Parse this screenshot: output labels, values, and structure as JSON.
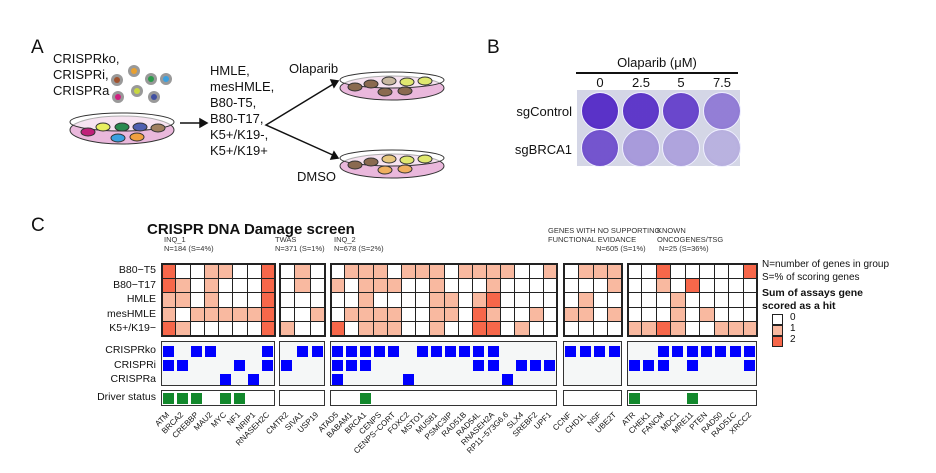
{
  "panelA": {
    "letter": "A",
    "libraries": [
      "CRISPRko,",
      "CRISPRi,",
      "CRISPRa"
    ],
    "cell_lines": [
      "HMLE,",
      "mesHMLE,",
      "B80-T5,",
      "B80-T17,",
      "K5+/K19-,",
      "K5+/K19+"
    ],
    "treatment_top": "Olaparib",
    "treatment_bottom": "DMSO"
  },
  "panelB": {
    "letter": "B",
    "axis_title": "Olaparib (μM)",
    "doses": [
      "0",
      "2.5",
      "5",
      "7.5"
    ],
    "rows": [
      "sgControl",
      "sgBRCA1"
    ],
    "stain_intensity": [
      [
        1.0,
        0.95,
        0.85,
        0.45
      ],
      [
        0.75,
        0.25,
        0.18,
        0.08
      ]
    ]
  },
  "panelC": {
    "letter": "C",
    "title": "CRISPR DNA Damage screen",
    "row_labels": [
      "B80−T5",
      "B80−T17",
      "HMLE",
      "mesHMLE",
      "K5+/K19−"
    ],
    "assay_labels": [
      "CRISPRko",
      "CRISPRi",
      "CRISPRa"
    ],
    "driver_label": "Driver status",
    "groups": [
      {
        "header": [
          "INQ_1",
          "N=184 (S=4%)"
        ],
        "genes": [
          "ATM",
          "BRCA2",
          "CREBBP",
          "MAU2",
          "MYC",
          "NF1",
          "NRIP1",
          "RNASEH2C"
        ],
        "matrix": [
          [
            2,
            0,
            0,
            1,
            1,
            0,
            0,
            2
          ],
          [
            2,
            1,
            0,
            1,
            0,
            0,
            0,
            2
          ],
          [
            1,
            1,
            0,
            1,
            0,
            0,
            0,
            2
          ],
          [
            1,
            0,
            1,
            1,
            1,
            1,
            1,
            2
          ],
          [
            2,
            1,
            0,
            0,
            0,
            0,
            0,
            2
          ]
        ],
        "ko": [
          0,
          2,
          3,
          7
        ],
        "i": [
          0,
          1,
          5,
          7
        ],
        "a": [
          4,
          6
        ],
        "driver": [
          0,
          1,
          2,
          4,
          5
        ]
      },
      {
        "header": [
          "TWAS",
          "N=371 (S=1%)"
        ],
        "genes": [
          "CMTR2",
          "SIVA1",
          "USP19"
        ],
        "matrix": [
          [
            0,
            1,
            0
          ],
          [
            0,
            1,
            0
          ],
          [
            0,
            0,
            0
          ],
          [
            0,
            0,
            1
          ],
          [
            1,
            0,
            0
          ]
        ],
        "ko": [
          1,
          2
        ],
        "i": [
          0
        ],
        "a": [],
        "driver": []
      },
      {
        "header": [
          "INQ_2",
          "N=678 (S=2%)"
        ],
        "genes": [
          "ATAD5",
          "BABAM1",
          "BRCA1",
          "CENPS",
          "CENPS−CORT",
          "FOXC2",
          "MSTO1",
          "MUS81",
          "PSMC3IP",
          "RAD51B",
          "RAD54L",
          "RNASEH2A",
          "RP11−573G6.6",
          "SLX4",
          "SREBF2",
          "UPF1"
        ],
        "matrix": [
          [
            0,
            1,
            1,
            1,
            0,
            1,
            1,
            1,
            0,
            1,
            1,
            1,
            1,
            0,
            0,
            1
          ],
          [
            1,
            0,
            1,
            1,
            1,
            0,
            0,
            1,
            0,
            0,
            0,
            1,
            0,
            0,
            0,
            0
          ],
          [
            0,
            0,
            1,
            0,
            0,
            0,
            0,
            1,
            1,
            0,
            1,
            2,
            0,
            0,
            0,
            0
          ],
          [
            0,
            1,
            1,
            1,
            1,
            0,
            0,
            1,
            1,
            0,
            2,
            1,
            0,
            0,
            1,
            0
          ],
          [
            2,
            0,
            1,
            1,
            1,
            0,
            0,
            1,
            0,
            0,
            2,
            2,
            0,
            1,
            0,
            0
          ]
        ],
        "ko": [
          0,
          1,
          2,
          3,
          4,
          6,
          7,
          8,
          9,
          10,
          11
        ],
        "i": [
          0,
          1,
          2,
          10,
          11,
          13,
          14,
          15
        ],
        "a": [
          0,
          5,
          12
        ],
        "driver": [
          2
        ]
      },
      {
        "header": [
          "GENES WITH NO SUPPORTING",
          "FUNCTIONAL EVIDANCE",
          "N=605 (S=1%)"
        ],
        "genes": [
          "CCNF",
          "CHD1L",
          "NSF",
          "UBE2T"
        ],
        "matrix": [
          [
            0,
            1,
            1,
            1
          ],
          [
            0,
            0,
            0,
            1
          ],
          [
            0,
            1,
            0,
            0
          ],
          [
            1,
            1,
            0,
            1
          ],
          [
            0,
            0,
            0,
            0
          ]
        ],
        "ko": [
          0,
          1,
          2,
          3
        ],
        "i": [],
        "a": [],
        "driver": []
      },
      {
        "header": [
          "KNOWN",
          "ONCOGENES/TSG",
          "N=25 (S=36%)"
        ],
        "genes": [
          "ATR",
          "CHEK1",
          "FANCM",
          "MDC1",
          "MRE11",
          "PTEN",
          "RAD50",
          "RAD51C",
          "XRCC2"
        ],
        "matrix": [
          [
            0,
            0,
            2,
            0,
            0,
            0,
            0,
            0,
            2
          ],
          [
            0,
            0,
            1,
            0,
            2,
            0,
            0,
            0,
            0
          ],
          [
            0,
            0,
            0,
            1,
            0,
            0,
            0,
            0,
            0
          ],
          [
            0,
            0,
            0,
            1,
            0,
            1,
            0,
            0,
            0
          ],
          [
            1,
            1,
            2,
            1,
            0,
            0,
            1,
            1,
            1
          ]
        ],
        "ko": [
          2,
          3,
          4,
          5,
          6,
          7,
          8
        ],
        "i": [
          0,
          1,
          2,
          4,
          8
        ],
        "a": [],
        "driver": [
          0,
          4
        ]
      }
    ],
    "legend": {
      "note1": "N=number of genes in group",
      "note2": "S=% of scoring genes",
      "title1": "Sum of assays gene",
      "title2": "scored as a hit",
      "levels": [
        "0",
        "1",
        "2"
      ]
    },
    "colors": {
      "level0": "#ffffff",
      "level1": "#f9b9a0",
      "level2": "#f7674a",
      "assay": "#0000ff",
      "driver": "#12882c"
    }
  }
}
